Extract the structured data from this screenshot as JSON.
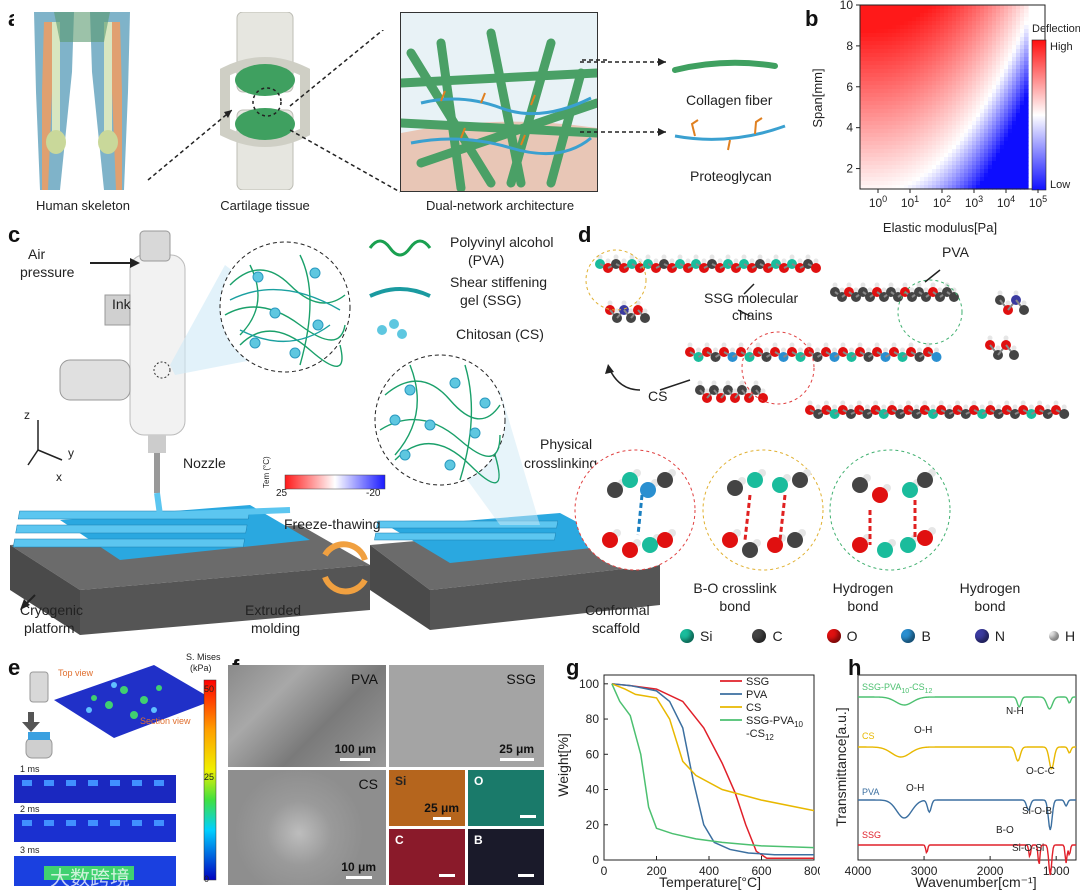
{
  "panels": {
    "a": {
      "letter": "a",
      "captions": [
        "Human skeleton",
        "Cartilage tissue",
        "Dual-network architecture"
      ],
      "legend": [
        "Collagen fiber",
        "Proteoglycan"
      ]
    },
    "b": {
      "letter": "b",
      "colorbar_title": "Deflection",
      "colorbar_high": "High",
      "colorbar_low": "Low"
    },
    "c": {
      "letter": "c",
      "labels": {
        "air": "Air",
        "pressure": "pressure",
        "ink": "Ink",
        "nozzle": "Nozzle",
        "physical": "Physical",
        "crosslinking": "crosslinking",
        "temp_label": "Tem (°C)",
        "temp_low": "25",
        "temp_high": "-20",
        "freeze": "Freeze-thawing",
        "cryogenic": "Cryogenic",
        "platform": "platform",
        "extruded": "Extruded",
        "molding": "molding",
        "conformal": "Conformal",
        "scaffold": "scaffold",
        "axis_z": "z",
        "axis_y": "y",
        "axis_x": "x"
      },
      "legend": [
        {
          "line1": "Polyvinyl alcohol",
          "line2": "(PVA)"
        },
        {
          "line1": "Shear stiffening",
          "line2": "gel (SSG)"
        },
        {
          "line1": "Chitosan (CS)",
          "line2": ""
        }
      ]
    },
    "d": {
      "letter": "d",
      "labels": {
        "pva": "PVA",
        "ssg1": "SSG molecular",
        "ssg2": "chains",
        "cs": "CS"
      },
      "bonds": [
        {
          "line1": "B-O crosslink",
          "line2": "bond"
        },
        {
          "line1": "Hydrogen",
          "line2": "bond"
        },
        {
          "line1": "Hydrogen",
          "line2": "bond"
        }
      ],
      "elements": [
        {
          "symbol": "Si",
          "color": "#1abc9c"
        },
        {
          "symbol": "C",
          "color": "#444444"
        },
        {
          "symbol": "O",
          "color": "#e01010"
        },
        {
          "symbol": "B",
          "color": "#2a8fd0"
        },
        {
          "symbol": "N",
          "color": "#3a3aa0"
        },
        {
          "symbol": "H",
          "color": "#e8e8e8"
        }
      ]
    },
    "e": {
      "letter": "e",
      "top_view": "Top view",
      "section_view": "Section view",
      "cb_title1": "S. Mises",
      "cb_title2": "(kPa)",
      "cb_ticks": [
        "50",
        "25",
        "0"
      ],
      "times": [
        "1 ms",
        "2 ms",
        "3 ms"
      ],
      "watermark": "大数跨境"
    },
    "f": {
      "letter": "f",
      "tiles": [
        {
          "label": "PVA",
          "scale": "100 μm"
        },
        {
          "label": "SSG",
          "scale": "25 μm"
        },
        {
          "label": "CS",
          "scale": "10 μm"
        }
      ],
      "eds": [
        {
          "label": "Si",
          "scale": "25 μm",
          "color": "#b5651d"
        },
        {
          "label": "O",
          "scale": "",
          "color": "#1a7a6a"
        },
        {
          "label": "C",
          "scale": "",
          "color": "#8a1a2a"
        },
        {
          "label": "B",
          "scale": "",
          "color": "#1a1a2a"
        }
      ]
    },
    "g": {
      "letter": "g"
    },
    "h": {
      "letter": "h"
    }
  },
  "chart_data": [
    {
      "type": "heatmap",
      "panel": "b",
      "xlabel": "Elastic modulus[Pa]",
      "ylabel": "Span[mm]",
      "xscale": "log",
      "xticks": [
        "10^0",
        "10^1",
        "10^2",
        "10^3",
        "10^4",
        "10^5"
      ],
      "yticks": [
        2,
        4,
        6,
        8,
        10
      ],
      "ylim": [
        1,
        10
      ],
      "colormap": "red-white-blue",
      "colorbar": {
        "title": "Deflection",
        "high": "High",
        "low": "Low"
      }
    },
    {
      "type": "line",
      "panel": "g",
      "xlabel": "Temperature[°C]",
      "ylabel": "Weight[%]",
      "xlim": [
        0,
        800
      ],
      "ylim": [
        0,
        105
      ],
      "xticks": [
        0,
        200,
        400,
        600,
        800
      ],
      "yticks": [
        0,
        20,
        40,
        60,
        80,
        100
      ],
      "legend_position": "top-right",
      "series": [
        {
          "name": "SSG",
          "color": "#e0202a",
          "x": [
            30,
            100,
            200,
            300,
            380,
            450,
            500,
            540,
            580,
            620,
            700,
            800
          ],
          "y": [
            100,
            99,
            97,
            90,
            75,
            55,
            38,
            20,
            5,
            1,
            1,
            1
          ]
        },
        {
          "name": "PVA",
          "color": "#3b6fa0",
          "x": [
            30,
            100,
            200,
            250,
            300,
            340,
            380,
            420,
            480,
            550,
            650,
            800
          ],
          "y": [
            100,
            99,
            96,
            90,
            75,
            45,
            20,
            10,
            6,
            4,
            3,
            3
          ]
        },
        {
          "name": "CS",
          "color": "#e8b800",
          "x": [
            30,
            80,
            120,
            160,
            200,
            250,
            300,
            350,
            450,
            600,
            800
          ],
          "y": [
            100,
            97,
            94,
            93,
            92,
            80,
            56,
            48,
            40,
            34,
            28
          ]
        },
        {
          "name": "SSG-PVA10-CS12",
          "color": "#4cc070",
          "x": [
            30,
            60,
            100,
            140,
            170,
            200,
            260,
            350,
            450,
            600,
            800
          ],
          "y": [
            100,
            90,
            82,
            60,
            30,
            18,
            15,
            12,
            10,
            8,
            7
          ]
        }
      ],
      "legend_labels": [
        {
          "main": "SSG",
          "sub1": "",
          "mid": "",
          "sub2": ""
        },
        {
          "main": "PVA",
          "sub1": "",
          "mid": "",
          "sub2": ""
        },
        {
          "main": "CS",
          "sub1": "",
          "mid": "",
          "sub2": ""
        },
        {
          "main": "SSG-PVA",
          "sub1": "10",
          "mid": "",
          "sub2": ""
        },
        {
          "main": "-CS",
          "sub1": "12",
          "mid": "",
          "sub2": ""
        }
      ]
    },
    {
      "type": "line",
      "panel": "h",
      "xlabel": "Wavenumber[cm⁻¹]",
      "ylabel": "Transmittance[a.u.]",
      "xlim": [
        4000,
        700
      ],
      "xticks": [
        4000,
        3000,
        2000,
        1000
      ],
      "series": [
        {
          "name": "SSG-PVA10-CS12",
          "color": "#4cc070"
        },
        {
          "name": "CS",
          "color": "#e8b800"
        },
        {
          "name": "PVA",
          "color": "#3b6fa0"
        },
        {
          "name": "SSG",
          "color": "#e0202a"
        }
      ],
      "annotations": [
        "O-H",
        "N-H",
        "O-H",
        "O-C-C",
        "Si-O-B",
        "B-O",
        "Si-O-Si"
      ]
    }
  ]
}
